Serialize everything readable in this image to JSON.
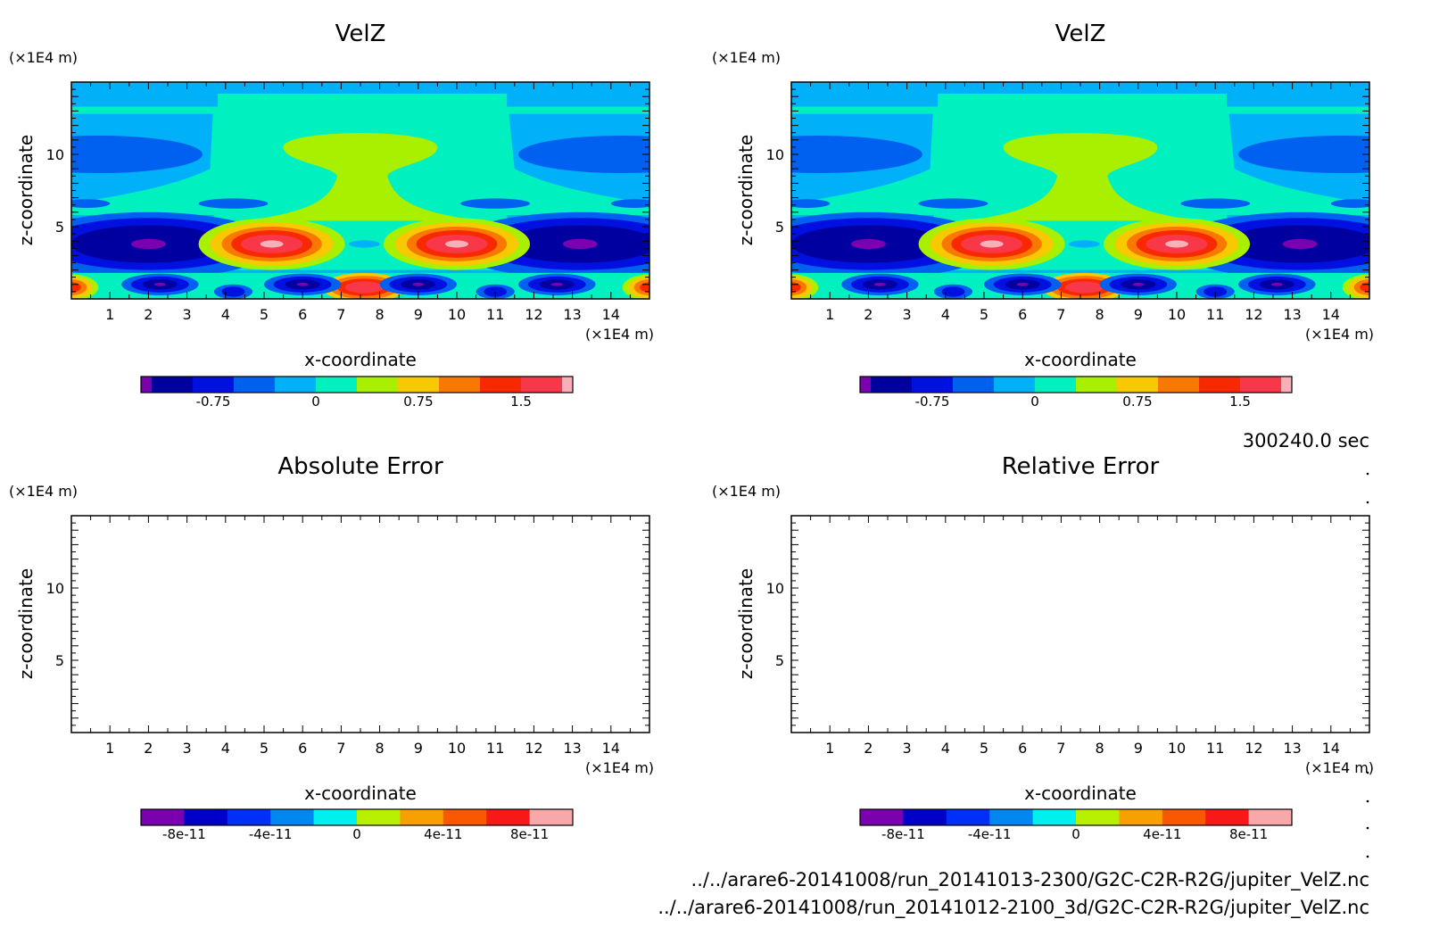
{
  "time_label": "300240.0 sec",
  "files": [
    "../../arare6-20141008/run_20141013-2300/G2C-C2R-R2G/jupiter_VelZ.nc",
    "../../arare6-20141008/run_20141012-2100_3d/G2C-C2R-R2G/jupiter_VelZ.nc"
  ],
  "chart_data": [
    {
      "type": "heatmap",
      "title": "VelZ",
      "xlabel": "x-coordinate",
      "ylabel": "z-coordinate",
      "x_unit": "(×1E4 m)",
      "y_unit": "(×1E4 m)",
      "x_ticks": [
        "1",
        "2",
        "3",
        "4",
        "5",
        "6",
        "7",
        "8",
        "9",
        "10",
        "11",
        "12",
        "13",
        "14"
      ],
      "y_ticks": [
        "5",
        "10"
      ],
      "xlim": [
        0,
        15
      ],
      "ylim": [
        0,
        15
      ],
      "colorbar": {
        "ticks": [
          "-0.75",
          "0",
          "0.75",
          "1.5"
        ],
        "levels": [
          -1.2,
          -0.9,
          -0.6,
          -0.3,
          0,
          0.3,
          0.6,
          0.9,
          1.2,
          1.5
        ],
        "colors": [
          "#7a00b0",
          "#0000a0",
          "#0010e0",
          "#0060f0",
          "#00b0f8",
          "#00f0c0",
          "#a8f000",
          "#f8c800",
          "#f87800",
          "#f82800",
          "#f83848",
          "#f8b0b8"
        ]
      },
      "features": [
        {
          "x": 2.0,
          "z": 3.8,
          "value": -1.2
        },
        {
          "x": 5.2,
          "z": 3.8,
          "value": 1.5
        },
        {
          "x": 10.0,
          "z": 3.8,
          "value": 1.5
        },
        {
          "x": 13.2,
          "z": 3.8,
          "value": -1.2
        },
        {
          "x": 7.6,
          "z": 0.8,
          "value": 1.2
        },
        {
          "x": 7.5,
          "z": 10.0,
          "value": 0.4
        }
      ]
    },
    {
      "type": "heatmap",
      "title": "VelZ",
      "xlabel": "x-coordinate",
      "ylabel": "z-coordinate",
      "x_unit": "(×1E4 m)",
      "y_unit": "(×1E4 m)",
      "x_ticks": [
        "1",
        "2",
        "3",
        "4",
        "5",
        "6",
        "7",
        "8",
        "9",
        "10",
        "11",
        "12",
        "13",
        "14"
      ],
      "y_ticks": [
        "5",
        "10"
      ],
      "xlim": [
        0,
        15
      ],
      "ylim": [
        0,
        15
      ],
      "colorbar": {
        "ticks": [
          "-0.75",
          "0",
          "0.75",
          "1.5"
        ],
        "levels": [
          -1.2,
          -0.9,
          -0.6,
          -0.3,
          0,
          0.3,
          0.6,
          0.9,
          1.2,
          1.5
        ],
        "colors": [
          "#7a00b0",
          "#0000a0",
          "#0010e0",
          "#0060f0",
          "#00b0f8",
          "#00f0c0",
          "#a8f000",
          "#f8c800",
          "#f87800",
          "#f82800",
          "#f83848",
          "#f8b0b8"
        ]
      },
      "features": [
        {
          "x": 2.0,
          "z": 3.8,
          "value": -1.2
        },
        {
          "x": 5.2,
          "z": 3.8,
          "value": 1.5
        },
        {
          "x": 10.0,
          "z": 3.8,
          "value": 1.5
        },
        {
          "x": 13.2,
          "z": 3.8,
          "value": -1.2
        },
        {
          "x": 7.6,
          "z": 0.8,
          "value": 1.2
        },
        {
          "x": 7.5,
          "z": 10.0,
          "value": 0.4
        }
      ]
    },
    {
      "type": "heatmap",
      "title": "Absolute Error",
      "xlabel": "x-coordinate",
      "ylabel": "z-coordinate",
      "x_unit": "(×1E4 m)",
      "y_unit": "(×1E4 m)",
      "x_ticks": [
        "1",
        "2",
        "3",
        "4",
        "5",
        "6",
        "7",
        "8",
        "9",
        "10",
        "11",
        "12",
        "13",
        "14"
      ],
      "y_ticks": [
        "5",
        "10"
      ],
      "xlim": [
        0,
        15
      ],
      "ylim": [
        0,
        15
      ],
      "colorbar": {
        "ticks": [
          "-8e-11",
          "-4e-11",
          "0",
          "4e-11",
          "8e-11"
        ],
        "colors": [
          "#7a00b0",
          "#0000c8",
          "#0030f8",
          "#0088f0",
          "#00f0f0",
          "#b8f000",
          "#f8a000",
          "#f85800",
          "#f81818",
          "#f8a8a8"
        ]
      },
      "values": "empty"
    },
    {
      "type": "heatmap",
      "title": "Relative Error",
      "xlabel": "x-coordinate",
      "ylabel": "z-coordinate",
      "x_unit": "(×1E4 m)",
      "y_unit": "(×1E4 m)",
      "x_ticks": [
        "1",
        "2",
        "3",
        "4",
        "5",
        "6",
        "7",
        "8",
        "9",
        "10",
        "11",
        "12",
        "13",
        "14"
      ],
      "y_ticks": [
        "5",
        "10"
      ],
      "xlim": [
        0,
        15
      ],
      "ylim": [
        0,
        15
      ],
      "colorbar": {
        "ticks": [
          "-8e-11",
          "-4e-11",
          "0",
          "4e-11",
          "8e-11"
        ],
        "colors": [
          "#7a00b0",
          "#0000c8",
          "#0030f8",
          "#0088f0",
          "#00f0f0",
          "#b8f000",
          "#f8a000",
          "#f85800",
          "#f81818",
          "#f8a8a8"
        ]
      },
      "values": "empty"
    }
  ]
}
